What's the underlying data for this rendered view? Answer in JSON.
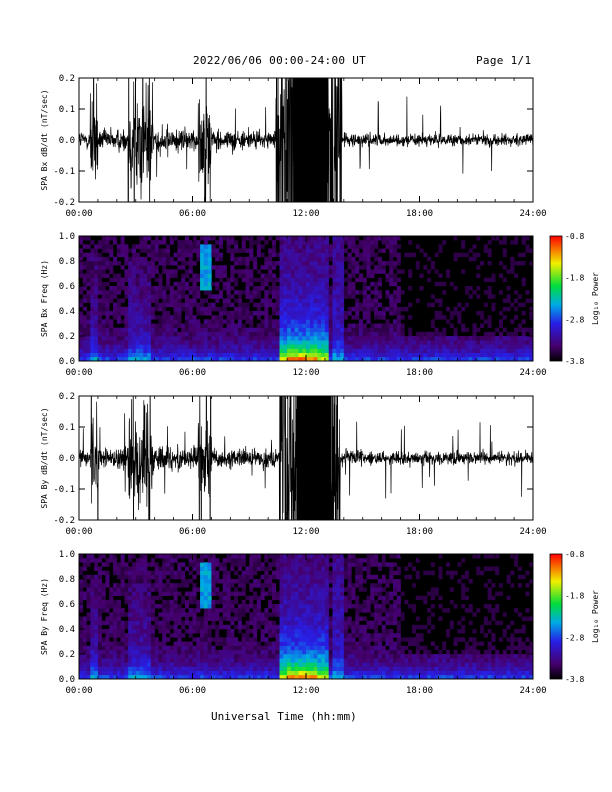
{
  "header": {
    "title": "2022/06/06  00:00-24:00 UT",
    "page": "Page 1/1"
  },
  "chart_data": [
    {
      "type": "line",
      "ylabel": "SPA Bx dB/dt (nT/sec)",
      "ylim": [
        -0.2,
        0.2
      ],
      "yticks": [
        "-0.2",
        "-0.1",
        "0.0",
        "0.1",
        "0.2"
      ],
      "xlim": [
        "00:00",
        "24:00"
      ],
      "xticks": [
        "00:00",
        "06:00",
        "12:00",
        "18:00",
        "24:00"
      ],
      "series_color": "#000000",
      "bursts_hours": [
        [
          0.6,
          1.0
        ],
        [
          2.6,
          3.9
        ],
        [
          6.3,
          7.0
        ],
        [
          10.4,
          13.9
        ]
      ]
    },
    {
      "type": "heatmap",
      "ylabel": "SPA Bx Freq (Hz)",
      "ylim": [
        0.0,
        1.0
      ],
      "yticks": [
        "0.0",
        "0.2",
        "0.4",
        "0.6",
        "0.8",
        "1.0"
      ],
      "xticks": [
        "00:00",
        "06:00",
        "12:00",
        "18:00",
        "24:00"
      ],
      "colorbar": {
        "label": "Log₁₀ Power",
        "min": -3.8,
        "max": -0.8,
        "ticks": [
          "-0.8",
          "-1.8",
          "-2.8",
          "-3.8"
        ]
      }
    },
    {
      "type": "line",
      "ylabel": "SPA By dB/dt (nT/sec)",
      "ylim": [
        -0.2,
        0.2
      ],
      "yticks": [
        "-0.2",
        "-0.1",
        "0.0",
        "0.1",
        "0.2"
      ],
      "xticks": [
        "00:00",
        "06:00",
        "12:00",
        "18:00",
        "24:00"
      ],
      "series_color": "#000000",
      "bursts_hours": [
        [
          0.6,
          1.0
        ],
        [
          2.6,
          3.9
        ],
        [
          6.3,
          7.0
        ],
        [
          10.6,
          13.8
        ]
      ]
    },
    {
      "type": "heatmap",
      "ylabel": "SPA By Freq (Hz)",
      "ylim": [
        0.0,
        1.0
      ],
      "yticks": [
        "0.0",
        "0.2",
        "0.4",
        "0.6",
        "0.8",
        "1.0"
      ],
      "xticks": [
        "00:00",
        "06:00",
        "12:00",
        "18:00",
        "24:00"
      ],
      "colorbar": {
        "label": "Log₁₀ Power",
        "min": -3.8,
        "max": -0.8,
        "ticks": [
          "-0.8",
          "-1.8",
          "-2.8",
          "-3.8"
        ]
      }
    }
  ],
  "xlabel": "Universal Time (hh:mm)"
}
